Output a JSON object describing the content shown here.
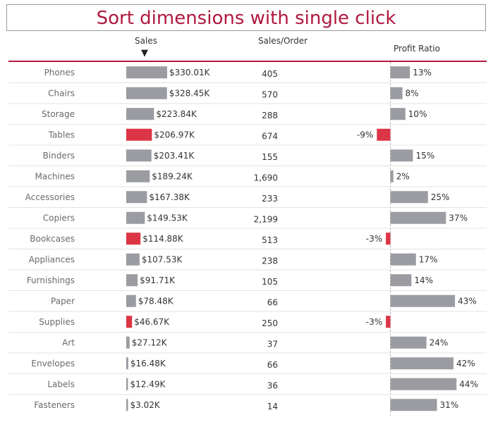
{
  "title": "Sort dimensions with single click",
  "headers": {
    "sales": "Sales",
    "sales_per_order": "Sales/Order",
    "profit_ratio": "Profit Ratio",
    "sort_indicator": "▼"
  },
  "colors": {
    "title": "#b0193e",
    "positive_bar": "#9a9ca2",
    "negative_bar": "#dc3545",
    "header_rule": "#b0193e",
    "row_divider": "#e3e3e3",
    "zero_line": "#b5b5b5"
  },
  "chart_data": {
    "type": "bar",
    "sorted_by": "Sales",
    "sort_order": "descending",
    "categories": [
      "Phones",
      "Chairs",
      "Storage",
      "Tables",
      "Binders",
      "Machines",
      "Accessories",
      "Copiers",
      "Bookcases",
      "Appliances",
      "Furnishings",
      "Paper",
      "Supplies",
      "Art",
      "Envelopes",
      "Labels",
      "Fasteners"
    ],
    "series": [
      {
        "name": "Sales",
        "values": [
          330010,
          328450,
          223840,
          206970,
          203410,
          189240,
          167380,
          149530,
          114880,
          107530,
          91710,
          78480,
          46670,
          27120,
          16480,
          12490,
          3020
        ],
        "labels": [
          "$330.01K",
          "$328.45K",
          "$223.84K",
          "$206.97K",
          "$203.41K",
          "$189.24K",
          "$167.38K",
          "$149.53K",
          "$114.88K",
          "$107.53K",
          "$91.71K",
          "$78.48K",
          "$46.67K",
          "$27.12K",
          "$16.48K",
          "$12.49K",
          "$3.02K"
        ]
      },
      {
        "name": "Sales/Order",
        "values": [
          405,
          570,
          288,
          674,
          155,
          1690,
          233,
          2199,
          513,
          238,
          105,
          66,
          250,
          37,
          66,
          36,
          14
        ],
        "labels": [
          "405",
          "570",
          "288",
          "674",
          "155",
          "1,690",
          "233",
          "2,199",
          "513",
          "238",
          "105",
          "66",
          "250",
          "37",
          "66",
          "36",
          "14"
        ]
      },
      {
        "name": "Profit Ratio",
        "values": [
          13,
          8,
          10,
          -9,
          15,
          2,
          25,
          37,
          -3,
          17,
          14,
          43,
          -3,
          24,
          42,
          44,
          31
        ],
        "labels": [
          "13%",
          "8%",
          "10%",
          "-9%",
          "15%",
          "2%",
          "25%",
          "37%",
          "-3%",
          "17%",
          "14%",
          "43%",
          "-3%",
          "24%",
          "42%",
          "44%",
          "31%"
        ]
      }
    ],
    "sales_xlim": [
      0,
      330010
    ],
    "profit_ratio_xlim": [
      -9,
      44
    ]
  }
}
